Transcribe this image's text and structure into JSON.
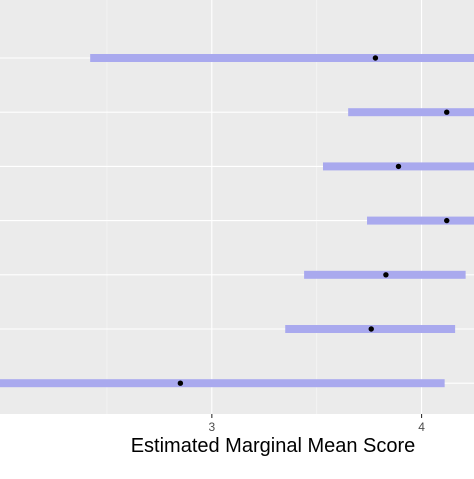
{
  "chart_data": {
    "type": "scatter",
    "title": "",
    "xlabel": "Estimated Marginal Mean Score",
    "ylabel": "",
    "xlim": [
      1.99,
      4.25
    ],
    "x_ticks": [
      3,
      4
    ],
    "x_tick_labels": [
      "3",
      "4"
    ],
    "grid": true,
    "legend": "none",
    "points": [
      {
        "estimate": 3.78,
        "lower": 2.42,
        "upper": 4.26
      },
      {
        "estimate": 4.12,
        "lower": 3.65,
        "upper": 4.26
      },
      {
        "estimate": 3.89,
        "lower": 3.53,
        "upper": 4.26
      },
      {
        "estimate": 4.12,
        "lower": 3.74,
        "upper": 4.26
      },
      {
        "estimate": 3.83,
        "lower": 3.44,
        "upper": 4.21
      },
      {
        "estimate": 3.76,
        "lower": 3.35,
        "upper": 4.16
      },
      {
        "estimate": 2.85,
        "lower": 1.99,
        "upper": 4.11
      }
    ]
  },
  "colors": {
    "panel": "#ebebeb",
    "grid_major": "#ffffff",
    "grid_minor": "#f4f4f4",
    "interval": "#a9a9ee",
    "point": "#000000",
    "axis_text": "#4d4d4d",
    "axis_title": "#000000"
  }
}
